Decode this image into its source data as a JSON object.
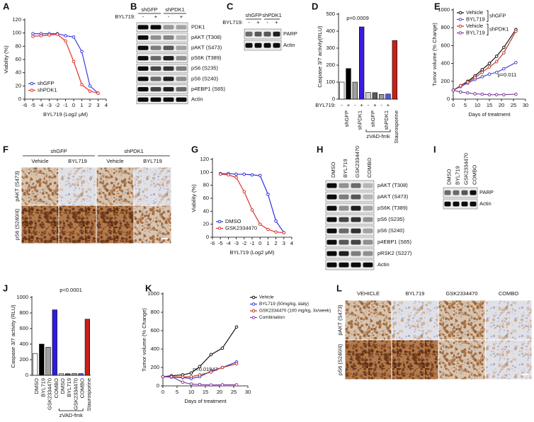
{
  "panel_labels": [
    "A",
    "B",
    "C",
    "D",
    "E",
    "F",
    "G",
    "H",
    "I",
    "J",
    "K",
    "L"
  ],
  "chart_data": [
    {
      "type": "line",
      "xlabel": "BYL719 (Log2 μM)",
      "ylabel": "Viability (%)",
      "x": [
        -5,
        -4,
        -3,
        -2,
        -1,
        0,
        1,
        2,
        3
      ],
      "series": [
        {
          "name": "shGFP",
          "color": "#3b3bdb",
          "values": [
            99,
            99,
            99,
            99,
            96,
            94,
            72,
            20,
            9
          ]
        },
        {
          "name": "shPDK1",
          "color": "#e0302a",
          "values": [
            95,
            96,
            97,
            98,
            88,
            57,
            22,
            12,
            9
          ]
        }
      ],
      "xlim": [
        -6,
        4
      ],
      "ylim": [
        0,
        120
      ],
      "xticks": [
        -6,
        -5,
        -4,
        -3,
        -2,
        -1,
        0,
        1,
        2,
        3,
        4
      ],
      "yticks": [
        0,
        20,
        40,
        60,
        80,
        100,
        120
      ],
      "legend": "lower left"
    },
    {
      "type": "bar",
      "ylabel": "Caspase 3/7 activity(RLU)",
      "category_label": "BYL719:",
      "categories": [
        "-",
        "+",
        "-",
        "+",
        "-",
        "+",
        "-",
        "+",
        null
      ],
      "groups": [
        "shGFP",
        "shPDK1",
        "shGFP",
        "shPDK1",
        "Staurosporine"
      ],
      "bracket_label": "zVAD-fmk",
      "values": [
        100,
        180,
        100,
        425,
        40,
        38,
        28,
        30,
        345
      ],
      "colors": [
        "#ffffff",
        "#000000",
        "#a0a0a0",
        "#3a1bdf",
        "#cfcfcf",
        "#5a5a5a",
        "#9a9a9a",
        "#5555e0",
        "#c8201a"
      ],
      "ylim": [
        0,
        500
      ],
      "yticks": [
        0,
        100,
        200,
        300,
        400,
        500
      ],
      "annotation": "p=0.0009"
    },
    {
      "type": "line",
      "xlabel": "Days of treatment",
      "ylabel": "Tumor volume (% Change)",
      "x": [
        0,
        3,
        6,
        9,
        12,
        15,
        18,
        21,
        26
      ],
      "series": [
        {
          "name": "Vehicle",
          "color": "#111111",
          "values": [
            100,
            150,
            200,
            260,
            330,
            400,
            480,
            580,
            780
          ]
        },
        {
          "name": "BYL719",
          "color": "#4a4ad8",
          "values": [
            100,
            140,
            180,
            220,
            250,
            280,
            300,
            340,
            410
          ]
        },
        {
          "name": "Vehicle",
          "color": "#c0392b",
          "values": [
            100,
            150,
            190,
            240,
            300,
            360,
            420,
            520,
            760
          ]
        },
        {
          "name": "BYL719",
          "color": "#7a3a9a",
          "values": [
            100,
            80,
            70,
            60,
            55,
            50,
            50,
            50,
            55
          ]
        }
      ],
      "legend_groups": [
        "shGFP",
        "shPDK1"
      ],
      "xlim": [
        0,
        30
      ],
      "ylim": [
        0,
        1000
      ],
      "xticks": [
        0,
        5,
        10,
        15,
        20,
        25,
        30
      ],
      "yticks": [
        0,
        200,
        400,
        600,
        800,
        1000
      ],
      "legend": "upper left",
      "annotation": "p=0.011"
    },
    {
      "type": "line",
      "xlabel": "BYL719 (Log2 μM)",
      "ylabel": "Viability (%)",
      "x": [
        -5,
        -4,
        -3,
        -2,
        -1,
        0,
        1,
        2,
        3
      ],
      "series": [
        {
          "name": "DMSO",
          "color": "#2f2fe0",
          "values": [
            98,
            98,
            97,
            97,
            96,
            95,
            66,
            25,
            7
          ]
        },
        {
          "name": "GSK2334470",
          "color": "#e0302a",
          "values": [
            97,
            96,
            92,
            70,
            42,
            20,
            12,
            8,
            7
          ]
        }
      ],
      "xlim": [
        -6,
        4
      ],
      "ylim": [
        0,
        120
      ],
      "xticks": [
        -6,
        -5,
        -4,
        -3,
        -2,
        -1,
        0,
        1,
        2,
        3,
        4
      ],
      "yticks": [
        0,
        20,
        40,
        60,
        80,
        100,
        120
      ],
      "legend": "lower left"
    },
    {
      "type": "bar",
      "ylabel": "Caspase 3/7 activity (RLU)",
      "categories": [
        "DMSO",
        "BYL719",
        "GSK2334470",
        "COMBO",
        "DMSO",
        "BYL719",
        "GSK2334470",
        "COMBO",
        "Staurosporine"
      ],
      "bracket_label": "zVAD-fmk",
      "values": [
        280,
        400,
        360,
        840,
        20,
        20,
        22,
        22,
        720
      ],
      "colors": [
        "#ffffff",
        "#000000",
        "#a0a0a0",
        "#2e1be0",
        "#cfcfcf",
        "#5a5a5a",
        "#9a9a9a",
        "#5555e0",
        "#c8201a"
      ],
      "ylim": [
        0,
        1000
      ],
      "yticks": [
        0,
        200,
        400,
        600,
        800,
        1000
      ],
      "annotation": "p<0.0001"
    },
    {
      "type": "line",
      "xlabel": "Days of treatment",
      "ylabel": "Tumor volume (% Change)",
      "x": [
        0,
        3,
        7,
        10,
        13,
        17,
        21,
        26
      ],
      "series": [
        {
          "name": "Vehicle",
          "color": "#111111",
          "values": [
            100,
            110,
            120,
            140,
            210,
            340,
            410,
            640
          ]
        },
        {
          "name": "BYL719 (50mg/kg, daily)",
          "color": "#3b3bdb",
          "values": [
            100,
            95,
            90,
            80,
            100,
            160,
            200,
            260
          ]
        },
        {
          "name": "GSK2334470 (100 mg/kg, 3x/week)",
          "color": "#c0392b",
          "values": [
            100,
            100,
            95,
            100,
            120,
            150,
            200,
            240
          ]
        },
        {
          "name": "Combination",
          "color": "#8a3aa8",
          "values": [
            100,
            100,
            40,
            20,
            15,
            10,
            12,
            12
          ]
        }
      ],
      "xlim": [
        0,
        30
      ],
      "ylim": [
        0,
        1000
      ],
      "xticks": [
        0,
        5,
        10,
        15,
        20,
        25,
        30
      ],
      "yticks": [
        0,
        200,
        400,
        600,
        800,
        1000
      ],
      "legend": "right",
      "annotation": "p=0.01947"
    }
  ],
  "blots": [
    {
      "lane_groups": [
        "shGFP",
        "shPDK1"
      ],
      "treatment_label": "BYL719:",
      "lanes": [
        "-",
        "+",
        "-",
        "+"
      ],
      "rows": [
        "PDK1",
        "pAKT (T308)",
        "pAKT (S473)",
        "pS6K (T389)",
        "pS6 (S235)",
        "pS6 (S240)",
        "p4EBP1 (S65)",
        "Actin"
      ]
    },
    {
      "lane_groups": [
        "shGFP",
        "shPDK1"
      ],
      "treatment_label": "BYL719:",
      "lanes": [
        "-",
        "+",
        "-",
        "+"
      ],
      "rows": [
        "PARP",
        "Actin"
      ]
    },
    {
      "lanes": [
        "DMSO",
        "BYL719",
        "GSK2334470",
        "COMBO"
      ],
      "rows": [
        "pAKT (T308)",
        "pAKT (S473)",
        "pS6K (T389)",
        "pS6 (S235)",
        "pS6 (S240)",
        "p4EBP1 (S65)",
        "pRSK2 (S227)",
        "Actin"
      ]
    },
    {
      "lanes": [
        "DMSO",
        "BYL719",
        "GSK2334470",
        "COMBO"
      ],
      "rows": [
        "PARP",
        "Actin"
      ]
    }
  ],
  "images": [
    {
      "column_groups": [
        "shGFP",
        "shPDK1"
      ],
      "columns": [
        "Vehicle",
        "BYL719",
        "Vehicle",
        "BYL719"
      ],
      "rows": [
        "pAKT (S473)",
        "pS6 (S240/4)"
      ]
    },
    {
      "columns": [
        "VEHICLE",
        "BYL719",
        "GSK2334470",
        "COMBO"
      ],
      "rows": [
        "pAKT (S473)",
        "pS6 (S240/4)"
      ]
    }
  ]
}
